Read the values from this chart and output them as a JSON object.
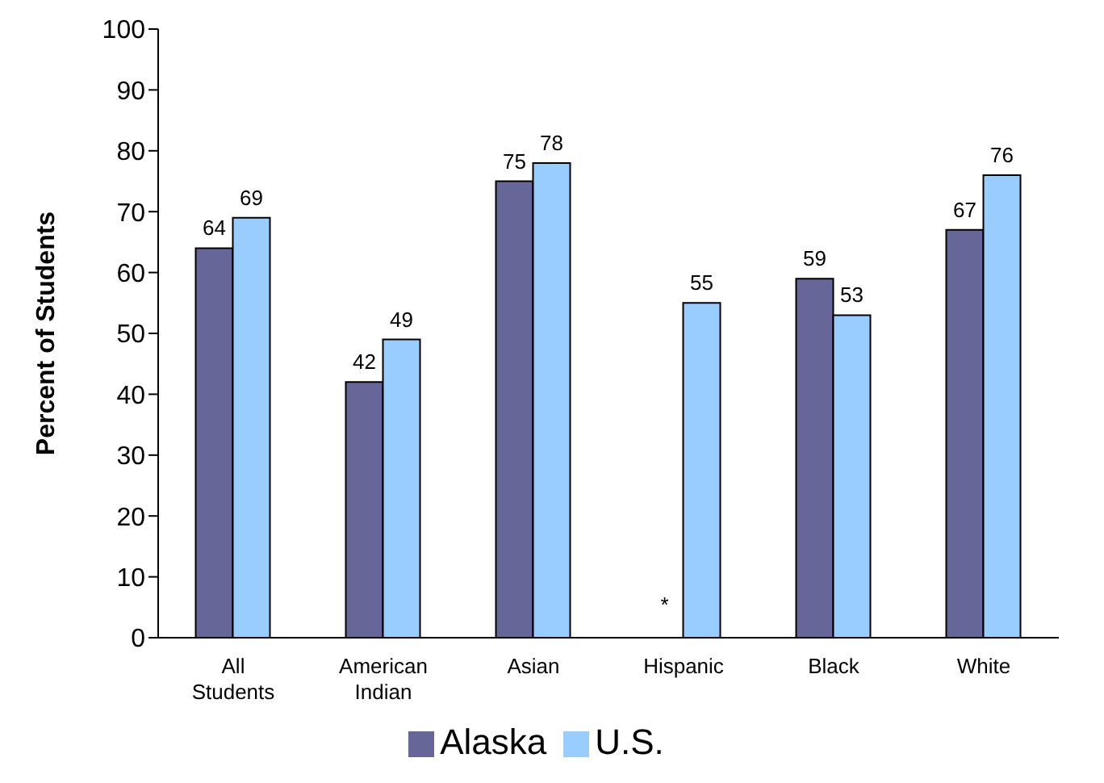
{
  "chart_data": {
    "type": "bar",
    "ylabel": "Percent of Students",
    "categories": [
      "All Students",
      "American Indian",
      "Asian",
      "Hispanic",
      "Black",
      "White"
    ],
    "series": [
      {
        "name": "Alaska",
        "color": "#666699",
        "values": [
          64,
          42,
          75,
          null,
          59,
          67
        ],
        "value_labels": [
          "64",
          "42",
          "75",
          "*",
          "59",
          "67"
        ]
      },
      {
        "name": "U.S.",
        "color": "#99ccff",
        "values": [
          69,
          49,
          78,
          55,
          53,
          76
        ],
        "value_labels": [
          "69",
          "49",
          "78",
          "55",
          "53",
          "76"
        ]
      }
    ],
    "ylim": [
      0,
      100
    ],
    "yticks": [
      0,
      10,
      20,
      30,
      40,
      50,
      60,
      70,
      80,
      90,
      100
    ],
    "grid": false,
    "legend": "bottom"
  }
}
